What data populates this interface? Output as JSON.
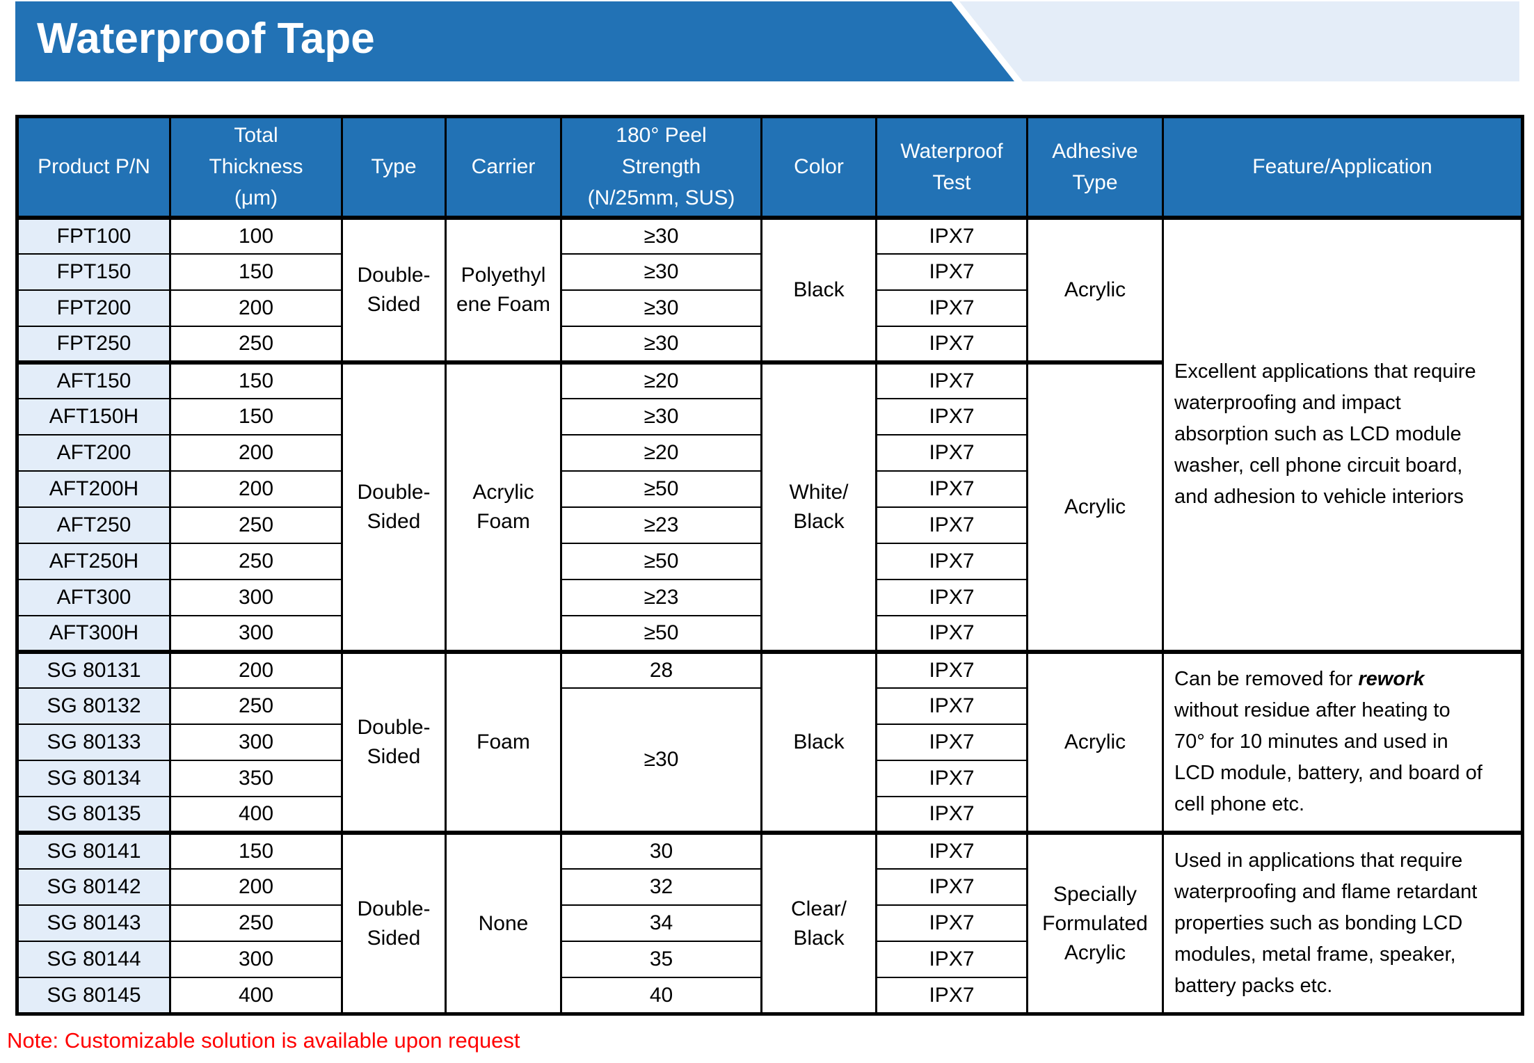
{
  "title": "Waterproof Tape",
  "note": "Note: Customizable solution is available upon request",
  "colors": {
    "banner_blue": "#2272B5",
    "banner_light": "#E4EDF8",
    "row_label_bg": "#E3EDF9",
    "note_red": "#FF0000",
    "border_black": "#000000"
  },
  "table": {
    "headers": [
      "Product P/N",
      "Total\nThickness\n(μm)",
      "Type",
      "Carrier",
      "180° Peel\nStrength\n(N/25mm, SUS)",
      "Color",
      "Waterproof\nTest",
      "Adhesive\nType",
      "Feature/Application"
    ],
    "groups": [
      {
        "type": "Double-\nSided",
        "carrier": "Polyethyl\nene Foam",
        "color": "Black",
        "adhesive": "Acrylic",
        "rows": [
          {
            "pn": "FPT100",
            "thickness": "100",
            "peel": "≥30",
            "wp": "IPX7"
          },
          {
            "pn": "FPT150",
            "thickness": "150",
            "peel": "≥30",
            "wp": "IPX7"
          },
          {
            "pn": "FPT200",
            "thickness": "200",
            "peel": "≥30",
            "wp": "IPX7"
          },
          {
            "pn": "FPT250",
            "thickness": "250",
            "peel": "≥30",
            "wp": "IPX7"
          }
        ]
      },
      {
        "type": "Double-\nSided",
        "carrier": "Acrylic\nFoam",
        "color": "White/\nBlack",
        "adhesive": "Acrylic",
        "rows": [
          {
            "pn": "AFT150",
            "thickness": "150",
            "peel": "≥20",
            "wp": "IPX7"
          },
          {
            "pn": "AFT150H",
            "thickness": "150",
            "peel": "≥30",
            "wp": "IPX7"
          },
          {
            "pn": "AFT200",
            "thickness": "200",
            "peel": "≥20",
            "wp": "IPX7"
          },
          {
            "pn": "AFT200H",
            "thickness": "200",
            "peel": "≥50",
            "wp": "IPX7"
          },
          {
            "pn": "AFT250",
            "thickness": "250",
            "peel": "≥23",
            "wp": "IPX7"
          },
          {
            "pn": "AFT250H",
            "thickness": "250",
            "peel": "≥50",
            "wp": "IPX7"
          },
          {
            "pn": "AFT300",
            "thickness": "300",
            "peel": "≥23",
            "wp": "IPX7"
          },
          {
            "pn": "AFT300H",
            "thickness": "300",
            "peel": "≥50",
            "wp": "IPX7"
          }
        ]
      },
      {
        "type": "Double-\nSided",
        "carrier": "Foam",
        "color": "Black",
        "adhesive": "Acrylic",
        "rows": [
          {
            "pn": "SG 80131",
            "thickness": "200",
            "peel": "28",
            "wp": "IPX7"
          },
          {
            "pn": "SG 80132",
            "thickness": "250",
            "peel": "≥30",
            "peel_rowspan": 4,
            "wp": "IPX7"
          },
          {
            "pn": "SG 80133",
            "thickness": "300",
            "wp": "IPX7"
          },
          {
            "pn": "SG 80134",
            "thickness": "350",
            "wp": "IPX7"
          },
          {
            "pn": "SG 80135",
            "thickness": "400",
            "wp": "IPX7"
          }
        ]
      },
      {
        "type": "Double-\nSided",
        "carrier": "None",
        "color": "Clear/\nBlack",
        "adhesive": "Specially\nFormulated\nAcrylic",
        "rows": [
          {
            "pn": "SG 80141",
            "thickness": "150",
            "peel": "30",
            "wp": "IPX7"
          },
          {
            "pn": "SG 80142",
            "thickness": "200",
            "peel": "32",
            "wp": "IPX7"
          },
          {
            "pn": "SG 80143",
            "thickness": "250",
            "peel": "34",
            "wp": "IPX7"
          },
          {
            "pn": "SG 80144",
            "thickness": "300",
            "peel": "35",
            "wp": "IPX7"
          },
          {
            "pn": "SG 80145",
            "thickness": "400",
            "peel": "40",
            "wp": "IPX7"
          }
        ]
      }
    ],
    "features": [
      {
        "span_groups": [
          0,
          1
        ],
        "text": "Excellent applications that require\nwaterproofing and impact\nabsorption such as LCD module\nwasher, cell phone circuit board,\nand adhesion to vehicle interiors"
      },
      {
        "span_groups": [
          2
        ],
        "parts": [
          {
            "t": "Can be removed for "
          },
          {
            "t": "rework",
            "style": "bold-italic"
          },
          {
            "t": "\nwithout residue after heating to\n70° for 10 minutes and used in\nLCD module, battery, and board of\ncell phone etc."
          }
        ]
      },
      {
        "span_groups": [
          3
        ],
        "text": "Used in applications that require\nwaterproofing and flame retardant\nproperties such as bonding LCD\nmodules, metal frame, speaker,\nbattery packs etc."
      }
    ]
  }
}
